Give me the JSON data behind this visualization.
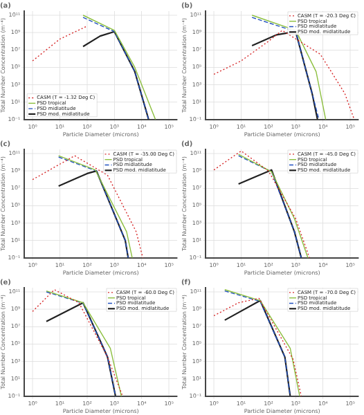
{
  "chart_data": [
    {
      "type": "line",
      "title": "(a)",
      "xlabel": "Particle Diameter (microns)",
      "ylabel": "Total Number Concentration (m⁻⁴)",
      "log": "xy",
      "grid": true,
      "legend": "bottom left",
      "marker": "none",
      "xlim": [
        0.5,
        200000
      ],
      "ylim": [
        0.1,
        300000000000
      ],
      "xticks": [
        {
          "value": 1,
          "label": "10⁰"
        },
        {
          "value": 10,
          "label": "10¹"
        },
        {
          "value": 100,
          "label": "10²"
        },
        {
          "value": 1000,
          "label": "10³"
        },
        {
          "value": 10000,
          "label": "10⁴"
        },
        {
          "value": 100000,
          "label": "10⁵"
        }
      ],
      "yticks": [
        {
          "value": 0.1,
          "label": "10⁻¹"
        },
        {
          "value": 10,
          "label": "10¹"
        },
        {
          "value": 1000,
          "label": "10³"
        },
        {
          "value": 100000,
          "label": "10⁵"
        },
        {
          "value": 10000000,
          "label": "10⁷"
        },
        {
          "value": 1000000000,
          "label": "10⁹"
        },
        {
          "value": 100000000000,
          "label": "10¹¹"
        }
      ],
      "series": [
        {
          "name": "CASM (T = -1.32 Deg C)",
          "color": "#d62728",
          "line_style": "dotted",
          "x": [
            1,
            10,
            100
          ],
          "values": [
            560000,
            180000000,
            5600000000
          ]
        },
        {
          "name": "PSD tropical",
          "color": "#8cbf3f",
          "line_style": "solid",
          "x": [
            71,
            1000,
            5600,
            32000
          ],
          "values": [
            100000000000,
            1800000000,
            100000,
            0.1
          ]
        },
        {
          "name": "PSD midlatitude",
          "color": "#1f4fbf",
          "line_style": "dashed",
          "x": [
            71,
            1000,
            5600,
            18000
          ],
          "values": [
            56000000000,
            1300000000,
            32000,
            0.1
          ]
        },
        {
          "name": "PSD mod. midlatitude",
          "color": "#222222",
          "line_style": "solid",
          "x": [
            71,
            300,
            1000,
            5600,
            18000
          ],
          "values": [
            25000000,
            400000000,
            1300000000,
            32000,
            0.1
          ]
        }
      ]
    },
    {
      "type": "line",
      "title": "(b)",
      "xlabel": "Particle Diameter (microns)",
      "ylabel": "Total Number Concentration (m⁻⁴)",
      "log": "xy",
      "grid": true,
      "legend": "top right",
      "marker": "none",
      "xlim": [
        0.5,
        200000
      ],
      "ylim": [
        0.1,
        300000000000
      ],
      "xticks": [
        {
          "value": 1,
          "label": "10⁰"
        },
        {
          "value": 10,
          "label": "10¹"
        },
        {
          "value": 100,
          "label": "10²"
        },
        {
          "value": 1000,
          "label": "10³"
        },
        {
          "value": 10000,
          "label": "10⁴"
        },
        {
          "value": 100000,
          "label": "10⁵"
        }
      ],
      "yticks": [
        {
          "value": 0.1,
          "label": "10⁻¹"
        },
        {
          "value": 10,
          "label": "10¹"
        },
        {
          "value": 1000,
          "label": "10³"
        },
        {
          "value": 100000,
          "label": "10⁵"
        },
        {
          "value": 10000000,
          "label": "10⁷"
        },
        {
          "value": 1000000000,
          "label": "10⁹"
        },
        {
          "value": 100000000000,
          "label": "10¹¹"
        }
      ],
      "series": [
        {
          "name": "CASM (T = -20.3 Deg C)",
          "color": "#d62728",
          "line_style": "dotted",
          "x": [
            1,
            10,
            100,
            320,
            8000,
            63000,
            140000
          ],
          "values": [
            16000,
            560000,
            100000000,
            1800000000,
            3200000,
            100,
            0.1
          ]
        },
        {
          "name": "PSD tropical",
          "color": "#8cbf3f",
          "line_style": "solid",
          "x": [
            25,
            1000,
            5600,
            12600
          ],
          "values": [
            100000000000,
            1800000000,
            32000,
            0.1
          ]
        },
        {
          "name": "PSD midlatitude",
          "color": "#1f4fbf",
          "line_style": "dashed",
          "x": [
            25,
            1000,
            4000,
            7100
          ],
          "values": [
            56000000000,
            1300000000,
            100,
            0.1
          ]
        },
        {
          "name": "PSD mod. midlatitude",
          "color": "#222222",
          "line_style": "solid",
          "x": [
            25,
            200,
            1000,
            4000,
            6300
          ],
          "values": [
            32000000,
            560000000,
            1300000000,
            100,
            0.1
          ]
        }
      ]
    },
    {
      "type": "line",
      "title": "(c)",
      "xlabel": "Particle Diameter (microns)",
      "ylabel": "Total Number Concentration (m⁻⁴)",
      "log": "xy",
      "grid": true,
      "legend": "top right",
      "marker": "none",
      "xlim": [
        0.5,
        200000
      ],
      "ylim": [
        0.1,
        300000000000
      ],
      "xticks": [
        {
          "value": 1,
          "label": "10⁰"
        },
        {
          "value": 10,
          "label": "10¹"
        },
        {
          "value": 100,
          "label": "10²"
        },
        {
          "value": 1000,
          "label": "10³"
        },
        {
          "value": 10000,
          "label": "10⁴"
        },
        {
          "value": 100000,
          "label": "10⁵"
        }
      ],
      "yticks": [
        {
          "value": 0.1,
          "label": "10⁻¹"
        },
        {
          "value": 10,
          "label": "10¹"
        },
        {
          "value": 1000,
          "label": "10³"
        },
        {
          "value": 100000,
          "label": "10⁵"
        },
        {
          "value": 10000000,
          "label": "10⁷"
        },
        {
          "value": 1000000000,
          "label": "10⁹"
        },
        {
          "value": 100000000000,
          "label": "10¹¹"
        }
      ],
      "series": [
        {
          "name": "CASM (T = -35.00 Deg C)",
          "color": "#d62728",
          "line_style": "dotted",
          "x": [
            1,
            35,
            560,
            6300,
            11000
          ],
          "values": [
            100000000,
            56000000000,
            320000000,
            100,
            0.1
          ]
        },
        {
          "name": "PSD tropical",
          "color": "#8cbf3f",
          "line_style": "solid",
          "x": [
            9,
            200,
            2800,
            4500
          ],
          "values": [
            56000000000,
            1300000000,
            100,
            0.1
          ]
        },
        {
          "name": "PSD midlatitude",
          "color": "#1f4fbf",
          "line_style": "dashed",
          "x": [
            9,
            220,
            2500,
            3200
          ],
          "values": [
            40000000000,
            1000000000,
            10,
            0.1
          ]
        },
        {
          "name": "PSD mod. midlatitude",
          "color": "#222222",
          "line_style": "solid",
          "x": [
            9,
            100,
            220,
            2500,
            3200
          ],
          "values": [
            18000000,
            500000000,
            1000000000,
            10,
            0.1
          ]
        }
      ]
    },
    {
      "type": "line",
      "title": "(d)",
      "xlabel": "Particle Diameter (microns)",
      "ylabel": "Total Number Concentration (m⁻⁴)",
      "log": "xy",
      "grid": true,
      "legend": "top right",
      "marker": "none",
      "xlim": [
        0.5,
        200000
      ],
      "ylim": [
        0.1,
        300000000000
      ],
      "xticks": [
        {
          "value": 1,
          "label": "10⁰"
        },
        {
          "value": 10,
          "label": "10¹"
        },
        {
          "value": 100,
          "label": "10²"
        },
        {
          "value": 1000,
          "label": "10³"
        },
        {
          "value": 10000,
          "label": "10⁴"
        },
        {
          "value": 100000,
          "label": "10⁵"
        }
      ],
      "yticks": [
        {
          "value": 0.1,
          "label": "10⁻¹"
        },
        {
          "value": 10,
          "label": "10¹"
        },
        {
          "value": 1000,
          "label": "10³"
        },
        {
          "value": 100000,
          "label": "10⁵"
        },
        {
          "value": 10000000,
          "label": "10⁷"
        },
        {
          "value": 1000000000,
          "label": "10⁹"
        },
        {
          "value": 100000000000,
          "label": "10¹¹"
        }
      ],
      "series": [
        {
          "name": "CASM (T = -45.0 Deg C)",
          "color": "#d62728",
          "line_style": "dotted",
          "x": [
            1,
            10,
            100,
            1000,
            3200
          ],
          "values": [
            1300000000,
            200000000000,
            1000000000,
            3200,
            0.1
          ]
        },
        {
          "name": "PSD tropical",
          "color": "#8cbf3f",
          "line_style": "solid",
          "x": [
            8,
            130,
            900,
            2800
          ],
          "values": [
            80000000000,
            800000000,
            3200,
            0.1
          ]
        },
        {
          "name": "PSD midlatitude",
          "color": "#1f4fbf",
          "line_style": "dashed",
          "x": [
            8,
            130,
            900,
            1600
          ],
          "values": [
            56000000000,
            800000000,
            100,
            0.1
          ]
        },
        {
          "name": "PSD mod. midlatitude",
          "color": "#222222",
          "line_style": "solid",
          "x": [
            8,
            130,
            900,
            1600
          ],
          "values": [
            32000000,
            1300000000,
            100,
            0.1
          ]
        }
      ]
    },
    {
      "type": "line",
      "title": "(e)",
      "xlabel": "Particle Diameter (microns)",
      "ylabel": "Total Number Concentration (m⁻⁴)",
      "log": "xy",
      "grid": true,
      "legend": "top right",
      "marker": "none",
      "xlim": [
        0.5,
        200000
      ],
      "ylim": [
        0.1,
        300000000000
      ],
      "xticks": [
        {
          "value": 1,
          "label": "10⁰"
        },
        {
          "value": 10,
          "label": "10¹"
        },
        {
          "value": 100,
          "label": "10²"
        },
        {
          "value": 1000,
          "label": "10³"
        },
        {
          "value": 10000,
          "label": "10⁴"
        },
        {
          "value": 100000,
          "label": "10⁵"
        }
      ],
      "yticks": [
        {
          "value": 0.1,
          "label": "10⁻¹"
        },
        {
          "value": 10,
          "label": "10¹"
        },
        {
          "value": 1000,
          "label": "10³"
        },
        {
          "value": 100000,
          "label": "10⁵"
        },
        {
          "value": 10000000,
          "label": "10⁷"
        },
        {
          "value": 1000000000,
          "label": "10⁹"
        },
        {
          "value": 100000000000,
          "label": "10¹¹"
        }
      ],
      "series": [
        {
          "name": "CASM (T = -60.0 Deg C)",
          "color": "#d62728",
          "line_style": "dotted",
          "x": [
            1,
            6.3,
            50,
            560,
            2000
          ],
          "values": [
            560000000,
            180000000000,
            5600000000,
            3200,
            0.1
          ]
        },
        {
          "name": "PSD tropical",
          "color": "#8cbf3f",
          "line_style": "solid",
          "x": [
            3.2,
            71,
            710,
            1800
          ],
          "values": [
            130000000000,
            5600000000,
            32000,
            0.1
          ]
        },
        {
          "name": "PSD midlatitude",
          "color": "#1f4fbf",
          "line_style": "dashed",
          "x": [
            3.2,
            71,
            560,
            1100
          ],
          "values": [
            100000000000,
            5000000000,
            3200,
            0.1
          ]
        },
        {
          "name": "PSD mod. midlatitude",
          "color": "#222222",
          "line_style": "solid",
          "x": [
            3.2,
            71,
            560,
            1100
          ],
          "values": [
            40000000,
            5600000000,
            3200,
            0.1
          ]
        }
      ]
    },
    {
      "type": "line",
      "title": "(f)",
      "xlabel": "Particle Diameter (microns)",
      "ylabel": "Total Number Concentration (m⁻⁴)",
      "log": "xy",
      "grid": true,
      "legend": "top right",
      "marker": "none",
      "xlim": [
        0.5,
        200000
      ],
      "ylim": [
        0.1,
        300000000000
      ],
      "xticks": [
        {
          "value": 1,
          "label": "10⁰"
        },
        {
          "value": 10,
          "label": "10¹"
        },
        {
          "value": 100,
          "label": "10²"
        },
        {
          "value": 1000,
          "label": "10³"
        },
        {
          "value": 10000,
          "label": "10⁴"
        },
        {
          "value": 100000,
          "label": "10⁵"
        }
      ],
      "yticks": [
        {
          "value": 0.1,
          "label": "10⁻¹"
        },
        {
          "value": 10,
          "label": "10¹"
        },
        {
          "value": 1000,
          "label": "10³"
        },
        {
          "value": 100000,
          "label": "10⁵"
        },
        {
          "value": 10000000,
          "label": "10⁷"
        },
        {
          "value": 1000000000,
          "label": "10⁹"
        },
        {
          "value": 100000000000,
          "label": "10¹¹"
        }
      ],
      "series": [
        {
          "name": "CASM (T = -70.0 Deg C)",
          "color": "#d62728",
          "line_style": "dotted",
          "x": [
            1,
            8,
            45,
            800,
            1600
          ],
          "values": [
            180000000,
            5600000000,
            18000000000,
            1800,
            0.1
          ]
        },
        {
          "name": "PSD tropical",
          "color": "#8cbf3f",
          "line_style": "solid",
          "x": [
            2.5,
            50,
            630,
            1400
          ],
          "values": [
            180000000000,
            10000000000,
            32000,
            0.1
          ]
        },
        {
          "name": "PSD midlatitude",
          "color": "#1f4fbf",
          "line_style": "dashed",
          "x": [
            2.5,
            50,
            400,
            630
          ],
          "values": [
            130000000000,
            8000000000,
            3200,
            0.1
          ]
        },
        {
          "name": "PSD mod. midlatitude",
          "color": "#222222",
          "line_style": "solid",
          "x": [
            2.5,
            50,
            400,
            630
          ],
          "values": [
            56000000,
            10000000000,
            3200,
            0.1
          ]
        }
      ]
    }
  ]
}
